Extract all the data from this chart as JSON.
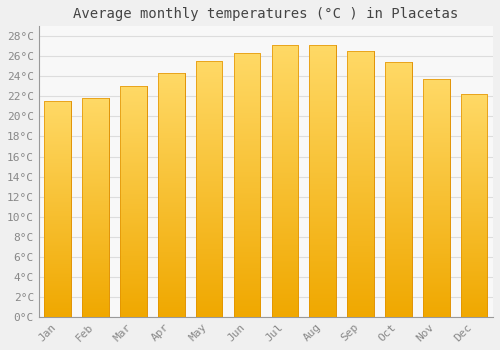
{
  "months": [
    "Jan",
    "Feb",
    "Mar",
    "Apr",
    "May",
    "Jun",
    "Jul",
    "Aug",
    "Sep",
    "Oct",
    "Nov",
    "Dec"
  ],
  "values": [
    21.5,
    21.8,
    23.0,
    24.3,
    25.5,
    26.3,
    27.1,
    27.1,
    26.5,
    25.4,
    23.7,
    22.2
  ],
  "bar_color_top": "#FFD966",
  "bar_color_bottom": "#F0A800",
  "bar_edge_color": "#E09000",
  "title": "Average monthly temperatures (°C ) in Placetas",
  "ylim": [
    0,
    29
  ],
  "background_color": "#f0f0f0",
  "plot_bg_color": "#f8f8f8",
  "grid_color": "#dddddd",
  "title_fontsize": 10,
  "tick_fontsize": 8,
  "tick_color": "#888888",
  "title_color": "#444444",
  "font_family": "monospace"
}
